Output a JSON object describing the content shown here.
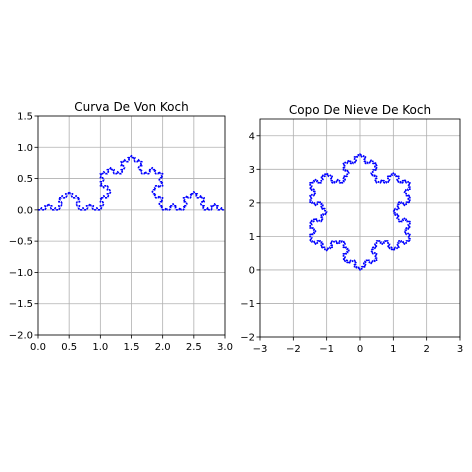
{
  "chart_data": [
    {
      "type": "line",
      "title": "Curva De Von Koch",
      "xlabel": "",
      "ylabel": "",
      "xlim": [
        0,
        3
      ],
      "ylim": [
        -2,
        1.5
      ],
      "xticks": [
        0.0,
        0.5,
        1.0,
        1.5,
        2.0,
        2.5,
        3.0
      ],
      "yticks": [
        -2.0,
        -1.5,
        -1.0,
        -0.5,
        0.0,
        0.5,
        1.0,
        1.5
      ],
      "xtick_labels": [
        "0.0",
        "0.5",
        "1.0",
        "1.5",
        "2.0",
        "2.5",
        "3.0"
      ],
      "ytick_labels": [
        "−2.0",
        "−1.5",
        "−1.0",
        "−0.5",
        "0.0",
        "0.5",
        "1.0",
        "1.5"
      ],
      "grid": true,
      "line_color": "#0000ff",
      "series": [
        {
          "curve": "koch",
          "start": [
            0,
            0
          ],
          "end": [
            3,
            0
          ],
          "iterations": 4
        }
      ]
    },
    {
      "type": "line",
      "title": "Copo De Nieve De Koch",
      "xlabel": "",
      "ylabel": "",
      "xlim": [
        -3,
        3
      ],
      "ylim": [
        -2,
        4.5
      ],
      "xticks": [
        -3,
        -2,
        -1,
        0,
        1,
        2,
        3
      ],
      "yticks": [
        -2,
        -1,
        0,
        1,
        2,
        3,
        4
      ],
      "xtick_labels": [
        "−3",
        "−2",
        "−1",
        "0",
        "1",
        "2",
        "3"
      ],
      "ytick_labels": [
        "−2",
        "−1",
        "0",
        "1",
        "2",
        "3",
        "4"
      ],
      "grid": true,
      "line_color": "#0000ff",
      "series": [
        {
          "curve": "koch",
          "start": [
            -1.5,
            0.866
          ],
          "end": [
            0,
            3.464
          ],
          "iterations": 4
        },
        {
          "curve": "koch",
          "start": [
            0,
            3.464
          ],
          "end": [
            1.5,
            0.866
          ],
          "iterations": 4
        },
        {
          "curve": "koch",
          "start": [
            1.5,
            0.866
          ],
          "end": [
            -1.5,
            0.866
          ],
          "iterations": 4
        }
      ]
    }
  ]
}
